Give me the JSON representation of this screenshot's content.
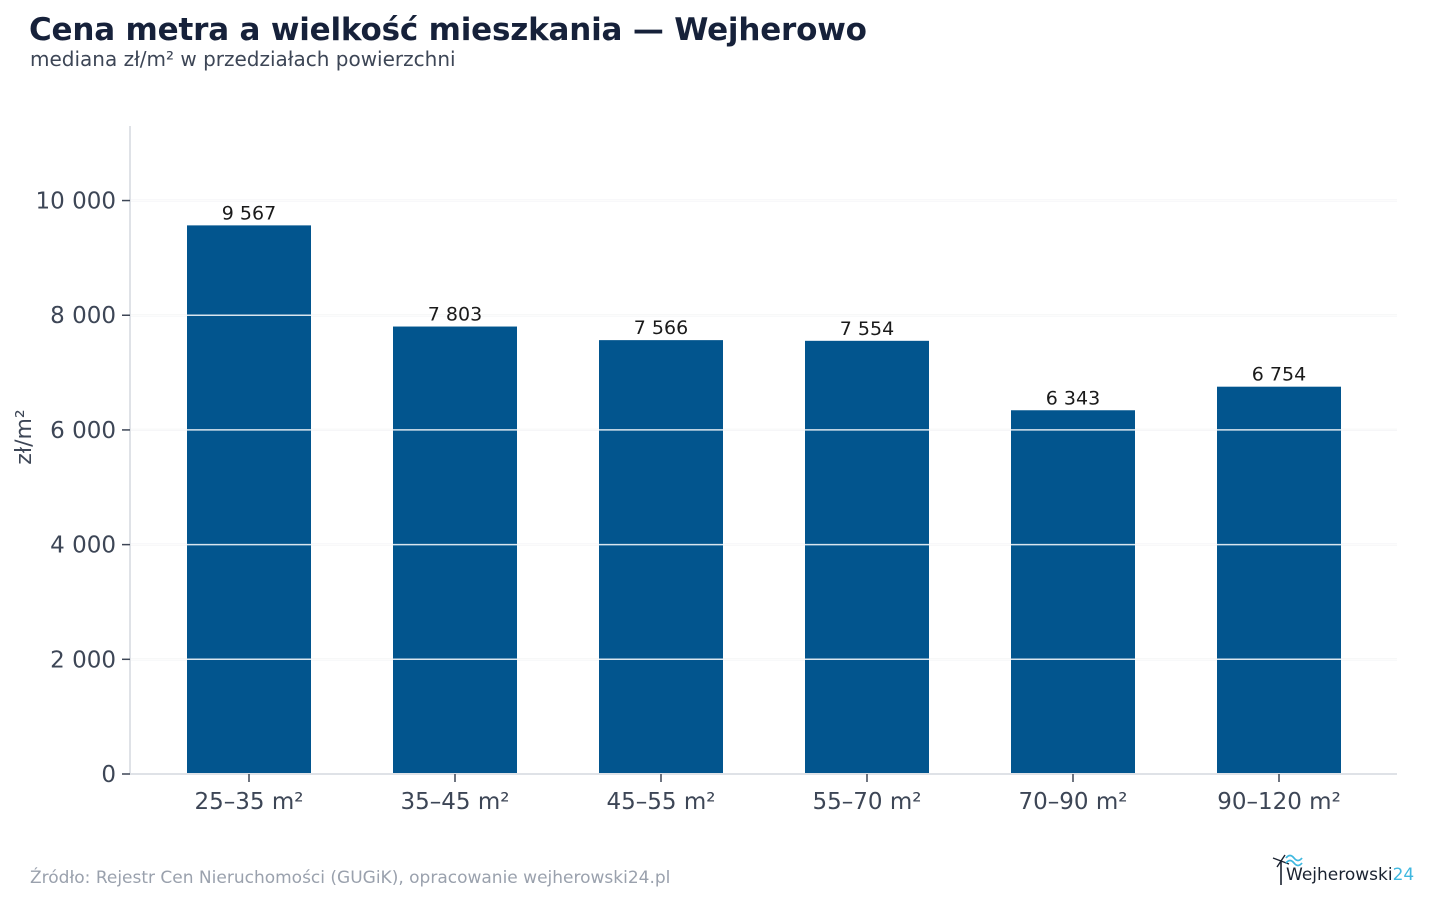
{
  "chart_data": {
    "type": "bar",
    "title": "Cena metra a wielkość mieszkania — Wejherowo",
    "subtitle": "mediana zł/m² w przedziałach powierzchni",
    "xlabel": "",
    "ylabel": "zł/m²",
    "categories": [
      "25–35 m²",
      "35–45 m²",
      "45–55 m²",
      "55–70 m²",
      "70–90 m²",
      "90–120 m²"
    ],
    "values": [
      9567,
      7803,
      7566,
      7554,
      6343,
      6754
    ],
    "value_labels": [
      "9 567",
      "7 803",
      "7 566",
      "7 554",
      "6 343",
      "6 754"
    ],
    "ylim": [
      0,
      11300
    ],
    "yticks": [
      0,
      2000,
      4000,
      6000,
      8000,
      10000
    ],
    "ytick_labels": [
      "0",
      "2 000",
      "4 000",
      "6 000",
      "8 000",
      "10 000"
    ],
    "grid": true,
    "bar_color": "#02558e",
    "grid_color": "#e6e8ec"
  },
  "footer": {
    "source": "Źródło: Rejestr Cen Nieruchomości (GUGiK), opracowanie wejherowski24.pl"
  },
  "logo": {
    "name": "Wejherowski",
    "suffix": "24",
    "icon": "windmill-wave-icon"
  }
}
